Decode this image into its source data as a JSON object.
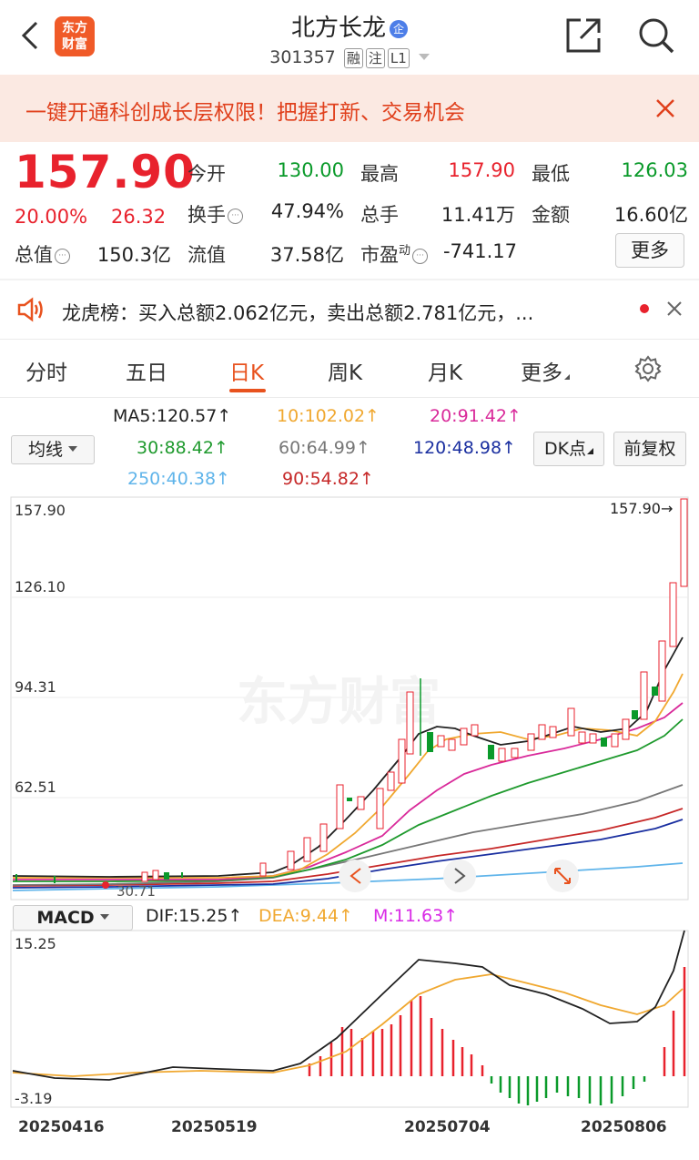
{
  "header": {
    "title": "北方长龙",
    "badge": "企",
    "code": "301357",
    "tags": [
      "融",
      "注",
      "L1"
    ],
    "logo_line1": "东方",
    "logo_line2": "财富"
  },
  "promo": {
    "text": "一键开通科创成长层权限！把握打新、交易机会"
  },
  "quote": {
    "price": "157.90",
    "change_pct": "20.00%",
    "change_amt": "26.32",
    "open_label": "今开",
    "open": "130.00",
    "high_label": "最高",
    "high": "157.90",
    "low_label": "最低",
    "low": "126.03",
    "turnover_label": "换手",
    "turnover": "47.94%",
    "volume_label": "总手",
    "volume": "11.41万",
    "amount_label": "金额",
    "amount": "16.60亿",
    "mktcap_label": "总值",
    "mktcap": "150.3亿",
    "float_label": "流值",
    "float": "37.58亿",
    "pe_label": "市盈",
    "pe_sup": "动",
    "pe": "-741.17",
    "more": "更多"
  },
  "lhb": {
    "text": "龙虎榜：买入总额2.062亿元，卖出总额2.781亿元，..."
  },
  "tabs": [
    {
      "label": "分时"
    },
    {
      "label": "五日"
    },
    {
      "label": "日K"
    },
    {
      "label": "周K"
    },
    {
      "label": "月K"
    },
    {
      "label": "更多"
    }
  ],
  "ma_panel": {
    "select": "均线",
    "dk": "DK点",
    "fq": "前复权",
    "ma5": "MA5:120.57↑",
    "ma10": "10:102.02↑",
    "ma20": "20:91.42↑",
    "ma30": "30:88.42↑",
    "ma60": "60:64.99↑",
    "ma120": "120:48.98↑",
    "ma250": "250:40.38↑",
    "ma90": "90:54.82↑",
    "colors": {
      "ma5": "#222222",
      "ma10": "#f0a830",
      "ma20": "#d92a9a",
      "ma30": "#1f9a2e",
      "ma60": "#777777",
      "ma120": "#1a2fa0",
      "ma250": "#5fb4ea",
      "ma90": "#c62828"
    }
  },
  "kline": {
    "y_labels": [
      "157.90",
      "126.10",
      "94.31",
      "62.51"
    ],
    "last_price": "157.90→",
    "low_label": "30.71",
    "watermark": "东方财富"
  },
  "macd": {
    "select": "MACD",
    "dif": "DIF:15.25↑",
    "dea": "DEA:9.44↑",
    "m": "M:11.63↑",
    "y_top": "15.25",
    "y_bottom": "-3.19"
  },
  "x_labels": [
    "20250416",
    "20250519",
    "20250704",
    "20250806"
  ]
}
